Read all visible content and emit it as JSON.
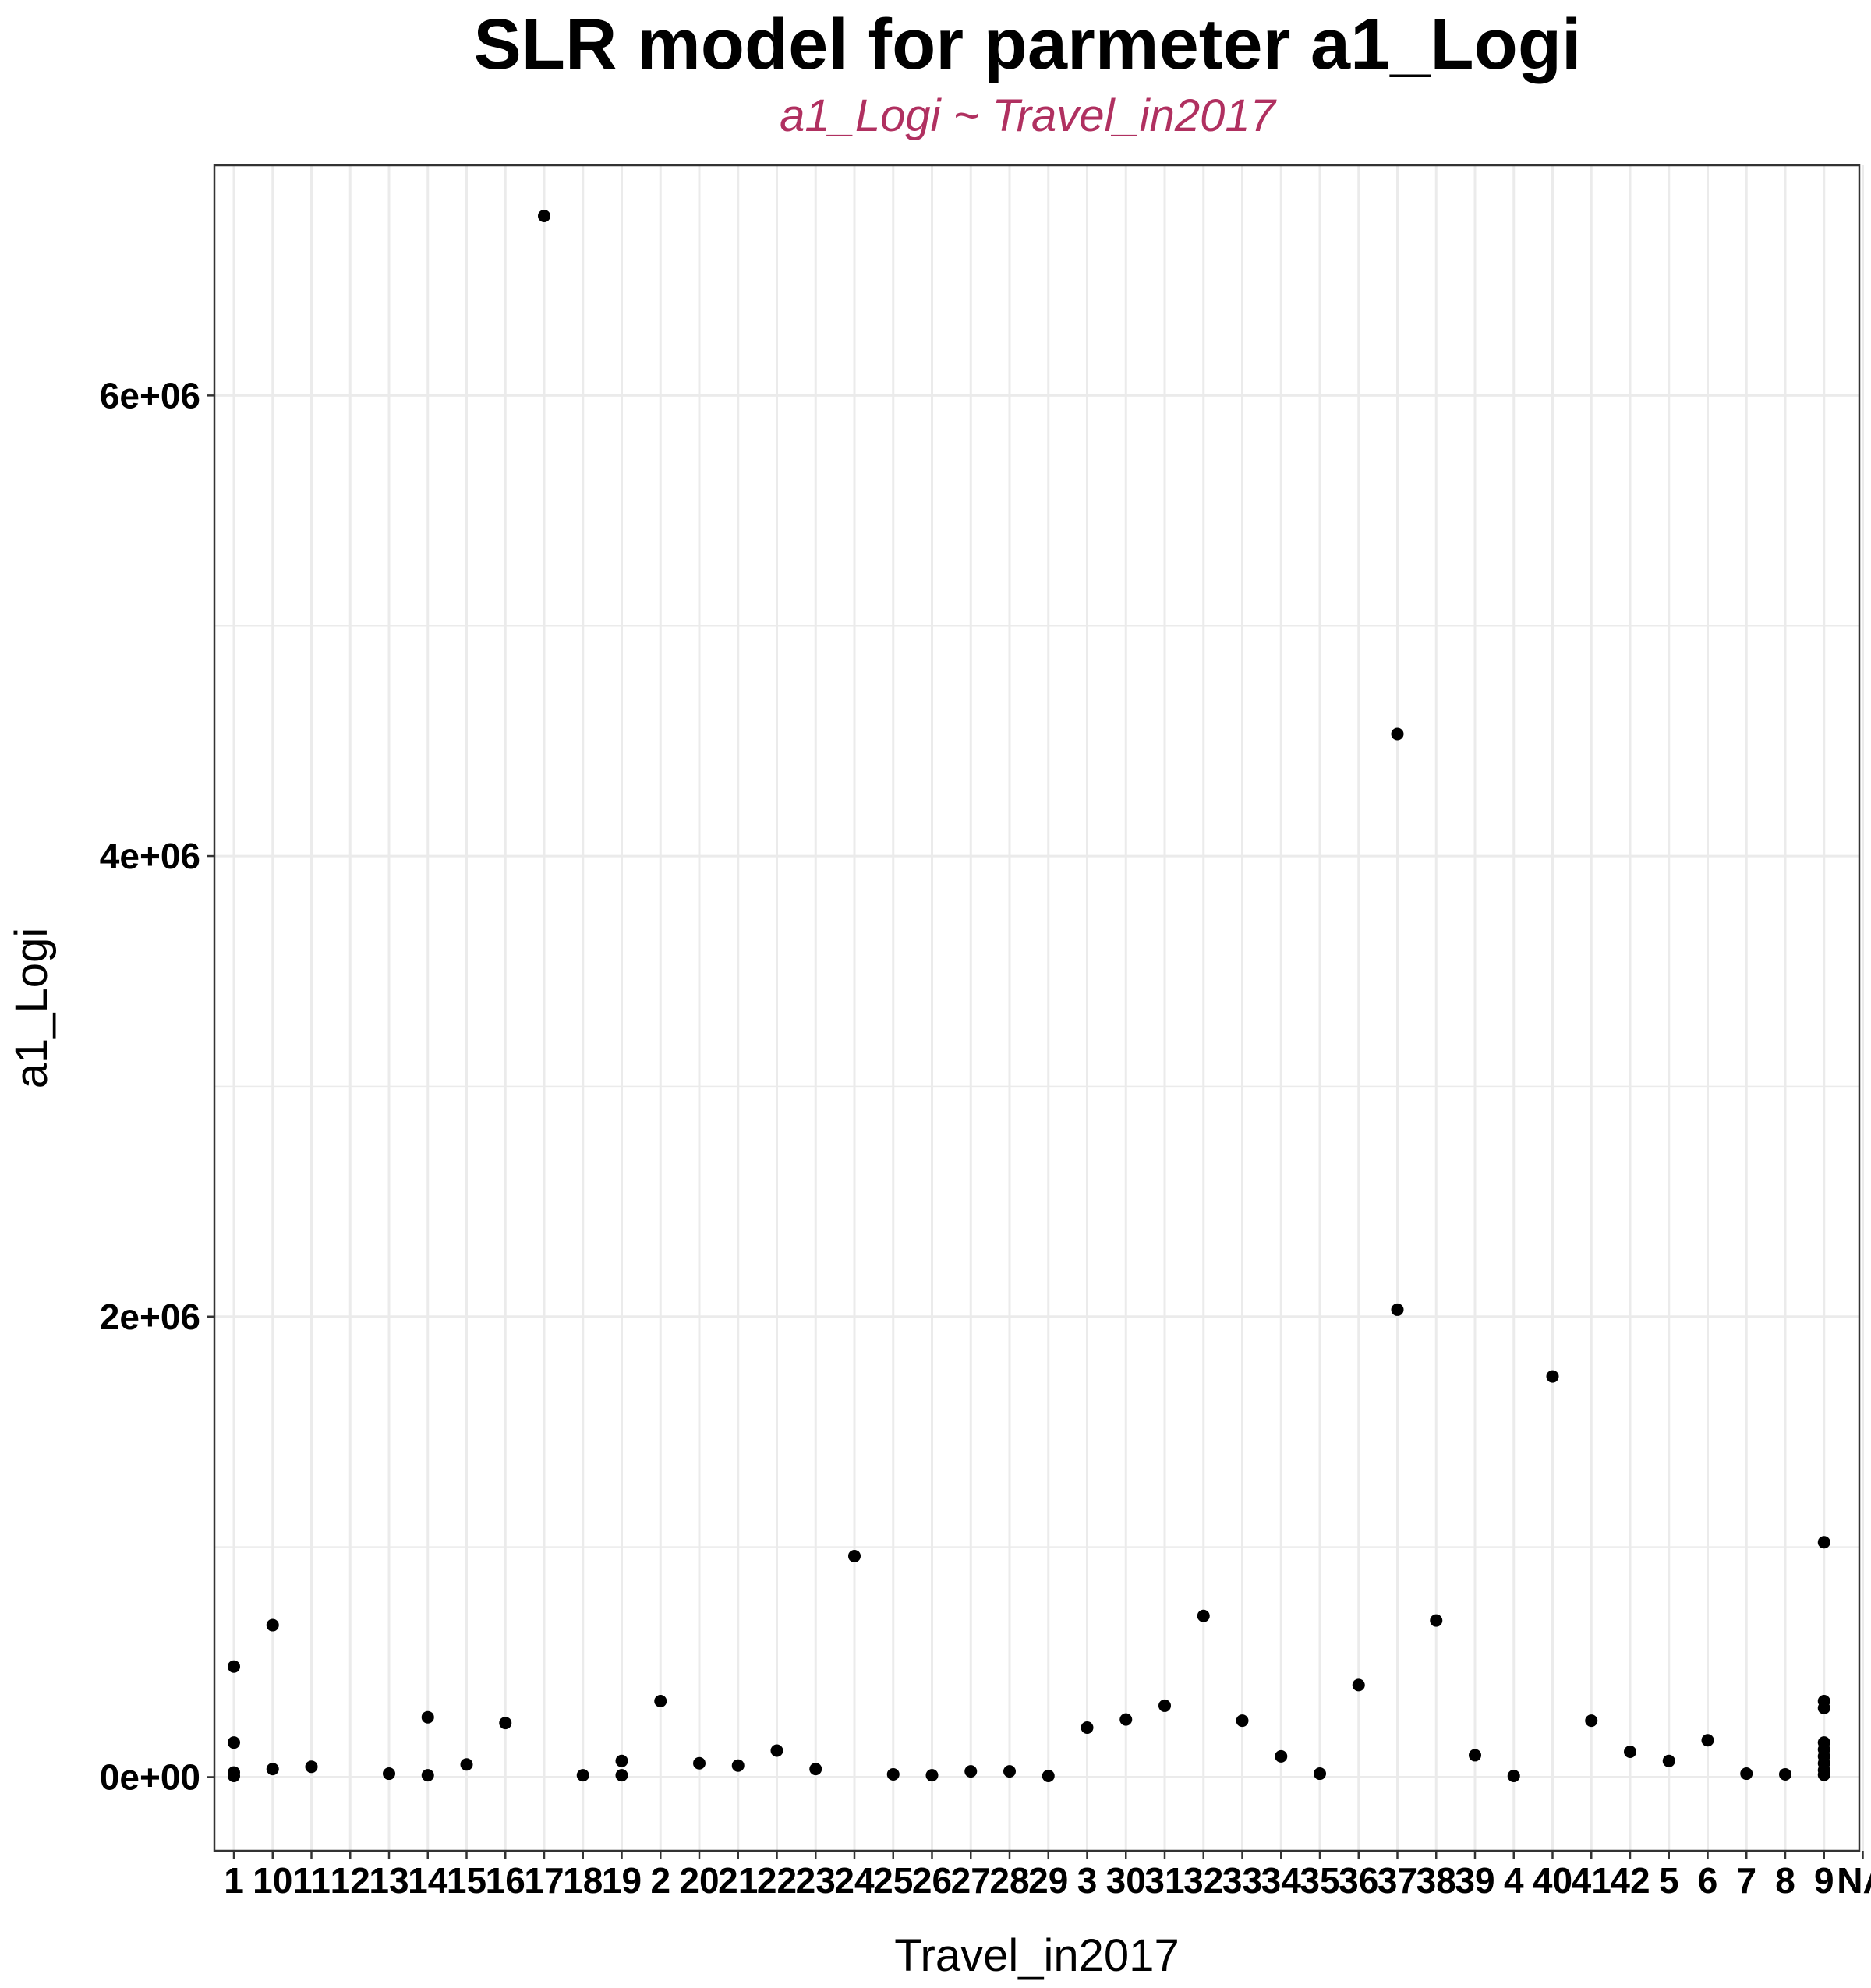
{
  "colors": {
    "subtitle": "#B03060",
    "points": "#000000",
    "grid": "#EBEBEB",
    "panel_border": "#333333"
  },
  "chart_data": {
    "type": "scatter",
    "title": "SLR model for parmeter a1_Logi",
    "subtitle": "a1_Logi ~ Travel_in2017",
    "xlabel": "Travel_in2017",
    "ylabel": "a1_Logi",
    "grid": true,
    "legend": "none",
    "ylim": [
      -320000,
      7000000
    ],
    "yticks": [
      0,
      2000000,
      4000000,
      6000000
    ],
    "ytick_labels": [
      "0e+00",
      "2e+06",
      "4e+06",
      "6e+06"
    ],
    "x_categories_count": 43,
    "x_tick_labels": [
      "1",
      "10",
      "11",
      "12",
      "13",
      "14",
      "15",
      "16",
      "17",
      "18",
      "19",
      "2",
      "20",
      "21",
      "22",
      "23",
      "24",
      "25",
      "26",
      "27",
      "28",
      "29",
      "3",
      "30",
      "31",
      "32",
      "33",
      "34",
      "35",
      "36",
      "37",
      "38",
      "39",
      "4",
      "40",
      "41",
      "42",
      "5",
      "6",
      "7",
      "8",
      "9",
      "NA"
    ],
    "points": [
      {
        "x": 1,
        "y": 480000
      },
      {
        "x": 1,
        "y": 150000
      },
      {
        "x": 1,
        "y": 20000
      },
      {
        "x": 1,
        "y": 5000
      },
      {
        "x": 2,
        "y": 660000
      },
      {
        "x": 2,
        "y": 35000
      },
      {
        "x": 3,
        "y": 45000
      },
      {
        "x": 5,
        "y": 15000
      },
      {
        "x": 6,
        "y": 260000
      },
      {
        "x": 6,
        "y": 8000
      },
      {
        "x": 7,
        "y": 55000
      },
      {
        "x": 8,
        "y": 235000
      },
      {
        "x": 9,
        "y": 6780000
      },
      {
        "x": 10,
        "y": 8000
      },
      {
        "x": 11,
        "y": 70000
      },
      {
        "x": 11,
        "y": 8000
      },
      {
        "x": 12,
        "y": 330000
      },
      {
        "x": 13,
        "y": 60000
      },
      {
        "x": 14,
        "y": 50000
      },
      {
        "x": 15,
        "y": 115000
      },
      {
        "x": 16,
        "y": 35000
      },
      {
        "x": 17,
        "y": 960000
      },
      {
        "x": 18,
        "y": 12000
      },
      {
        "x": 19,
        "y": 8000
      },
      {
        "x": 20,
        "y": 25000
      },
      {
        "x": 21,
        "y": 25000
      },
      {
        "x": 22,
        "y": 5000
      },
      {
        "x": 23,
        "y": 215000
      },
      {
        "x": 24,
        "y": 250000
      },
      {
        "x": 25,
        "y": 310000
      },
      {
        "x": 26,
        "y": 700000
      },
      {
        "x": 27,
        "y": 245000
      },
      {
        "x": 28,
        "y": 90000
      },
      {
        "x": 29,
        "y": 15000
      },
      {
        "x": 30,
        "y": 400000
      },
      {
        "x": 31,
        "y": 4530000
      },
      {
        "x": 31,
        "y": 2030000
      },
      {
        "x": 32,
        "y": 680000
      },
      {
        "x": 33,
        "y": 95000
      },
      {
        "x": 34,
        "y": 5000
      },
      {
        "x": 35,
        "y": 1740000
      },
      {
        "x": 36,
        "y": 245000
      },
      {
        "x": 37,
        "y": 110000
      },
      {
        "x": 38,
        "y": 70000
      },
      {
        "x": 39,
        "y": 160000
      },
      {
        "x": 40,
        "y": 15000
      },
      {
        "x": 41,
        "y": 12000
      },
      {
        "x": 42,
        "y": 1020000
      },
      {
        "x": 42,
        "y": 330000
      },
      {
        "x": 42,
        "y": 300000
      },
      {
        "x": 42,
        "y": 150000
      },
      {
        "x": 42,
        "y": 120000
      },
      {
        "x": 42,
        "y": 90000
      },
      {
        "x": 42,
        "y": 60000
      },
      {
        "x": 42,
        "y": 30000
      },
      {
        "x": 42,
        "y": 10000
      }
    ]
  }
}
